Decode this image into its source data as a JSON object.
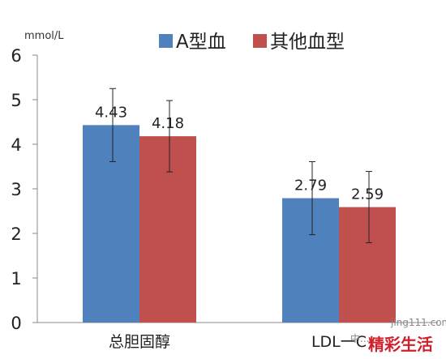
{
  "chart_data": {
    "type": "bar",
    "categories": [
      "总胆固醇",
      "LDL一C"
    ],
    "series": [
      {
        "name": "A型血",
        "color": "#4f81bd",
        "values": [
          4.43,
          2.79
        ],
        "error": [
          0.82,
          0.82
        ]
      },
      {
        "name": "其他血型",
        "color": "#c0504d",
        "values": [
          4.18,
          2.59
        ],
        "error": [
          0.8,
          0.8
        ]
      }
    ],
    "ylabel": "mmol/L",
    "ylim": [
      0,
      6
    ],
    "yticks": [
      0,
      1,
      2,
      3,
      4,
      5,
      6
    ],
    "data_labels": [
      "4.43",
      "4.18",
      "2.79",
      "2.59"
    ],
    "grid": false,
    "legend_position": "top"
  },
  "watermark": {
    "site": "jing111.com",
    "brand": "精彩生活",
    "faded": "中..."
  }
}
